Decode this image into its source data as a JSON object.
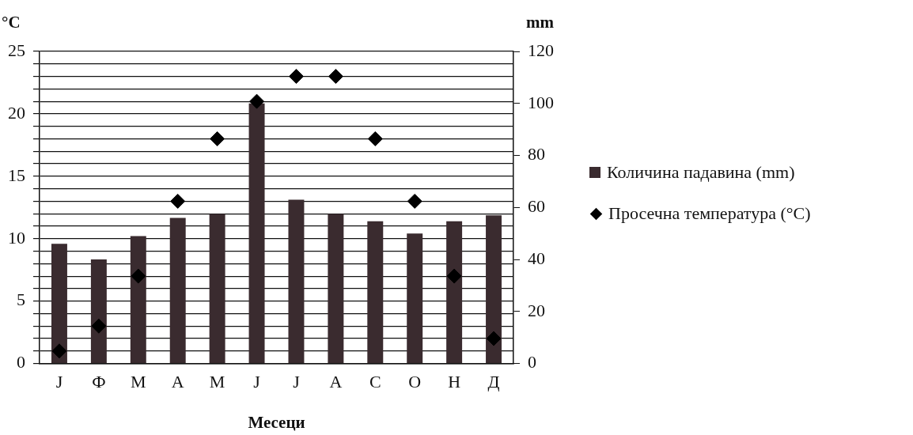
{
  "chart_data": {
    "type": "bar",
    "xlabel": "Месеци",
    "ylabel": "°C",
    "y2label": "mm",
    "categories": [
      "Ј",
      "Ф",
      "М",
      "А",
      "М",
      "Ј",
      "Ј",
      "А",
      "С",
      "О",
      "Н",
      "Д"
    ],
    "series": [
      {
        "name": "Количина падавина (mm)",
        "axis": "y2",
        "color": "#3a2b2f",
        "values": [
          46,
          40,
          49,
          56,
          57.5,
          100,
          63,
          57.5,
          54.7,
          50,
          54.7,
          57
        ]
      },
      {
        "name": "Просечна температура (°C)",
        "type": "scatter",
        "color": "#000000",
        "marker": "diamond",
        "values": [
          1,
          3,
          7,
          13,
          18,
          21,
          23,
          23,
          18,
          13,
          7,
          2
        ]
      }
    ],
    "ylim": [
      0,
      25
    ],
    "yticks": [
      0,
      {
        "value": 1,
        "label": null
      },
      {
        "value": 2,
        "label": null
      },
      {
        "value": 3,
        "label": null
      },
      {
        "value": 4,
        "label": null
      },
      5,
      {
        "value": 6,
        "label": null
      },
      {
        "value": 7,
        "label": null
      },
      {
        "value": 8,
        "label": null
      },
      {
        "value": 9,
        "label": null
      },
      10,
      {
        "value": 11,
        "label": null
      },
      {
        "value": 12,
        "label": null
      },
      {
        "value": 13,
        "label": null
      },
      {
        "value": 14,
        "label": null
      },
      15,
      {
        "value": 16,
        "label": null
      },
      {
        "value": 17,
        "label": null
      },
      {
        "value": 18,
        "label": null
      },
      {
        "value": 19,
        "label": null
      },
      20,
      {
        "value": 21,
        "label": null
      },
      {
        "value": 22,
        "label": null
      },
      {
        "value": 23,
        "label": null
      },
      {
        "value": 24,
        "label": null
      },
      25
    ],
    "y2lim": [
      0,
      120
    ],
    "y2ticks": [
      0,
      20,
      40,
      60,
      80,
      100,
      120
    ],
    "grid": "y",
    "legend": "right"
  }
}
